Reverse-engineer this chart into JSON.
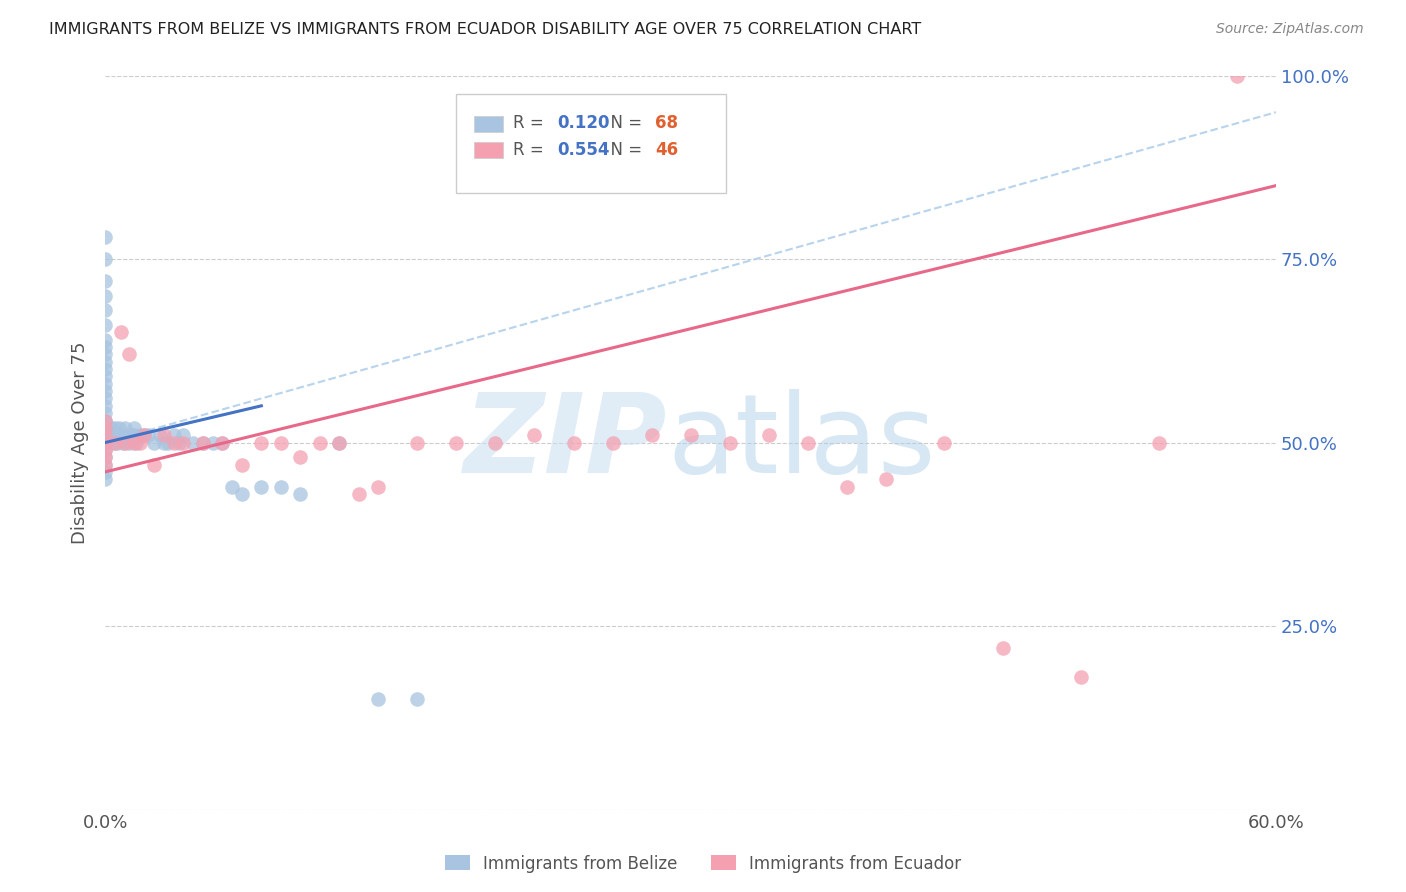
{
  "title": "IMMIGRANTS FROM BELIZE VS IMMIGRANTS FROM ECUADOR DISABILITY AGE OVER 75 CORRELATION CHART",
  "source": "Source: ZipAtlas.com",
  "ylabel": "Disability Age Over 75",
  "x_min": 0.0,
  "x_max": 0.6,
  "y_min": 0.0,
  "y_max": 1.0,
  "y_ticks": [
    0.0,
    0.25,
    0.5,
    0.75,
    1.0
  ],
  "y_tick_labels_right": [
    "",
    "25.0%",
    "50.0%",
    "75.0%",
    "100.0%"
  ],
  "belize_color": "#a8c4e0",
  "ecuador_color": "#f4a0b0",
  "belize_line_color": "#4472c4",
  "ecuador_line_color": "#e8688a",
  "belize_trendline_color": "#b8d4ec",
  "legend_belize_R": "0.120",
  "legend_belize_N": "68",
  "legend_ecuador_R": "0.554",
  "legend_ecuador_N": "46",
  "belize_x": [
    0.0,
    0.0,
    0.0,
    0.0,
    0.0,
    0.0,
    0.0,
    0.0,
    0.0,
    0.0,
    0.0,
    0.0,
    0.0,
    0.0,
    0.0,
    0.0,
    0.0,
    0.0,
    0.0,
    0.0,
    0.0,
    0.0,
    0.0,
    0.0,
    0.0,
    0.0,
    0.0,
    0.0,
    0.0,
    0.0,
    0.002,
    0.003,
    0.004,
    0.005,
    0.005,
    0.006,
    0.007,
    0.008,
    0.009,
    0.01,
    0.01,
    0.012,
    0.013,
    0.015,
    0.015,
    0.016,
    0.018,
    0.02,
    0.022,
    0.025,
    0.028,
    0.03,
    0.032,
    0.035,
    0.038,
    0.04,
    0.045,
    0.05,
    0.055,
    0.06,
    0.065,
    0.07,
    0.08,
    0.09,
    0.1,
    0.12,
    0.14,
    0.16
  ],
  "belize_y": [
    0.5,
    0.51,
    0.52,
    0.53,
    0.54,
    0.55,
    0.56,
    0.57,
    0.58,
    0.59,
    0.6,
    0.61,
    0.62,
    0.63,
    0.64,
    0.66,
    0.68,
    0.7,
    0.72,
    0.75,
    0.78,
    0.45,
    0.46,
    0.47,
    0.48,
    0.49,
    0.5,
    0.51,
    0.52,
    0.53,
    0.51,
    0.52,
    0.5,
    0.51,
    0.52,
    0.5,
    0.52,
    0.51,
    0.5,
    0.51,
    0.52,
    0.5,
    0.51,
    0.51,
    0.52,
    0.5,
    0.51,
    0.51,
    0.51,
    0.5,
    0.51,
    0.5,
    0.5,
    0.51,
    0.5,
    0.51,
    0.5,
    0.5,
    0.5,
    0.5,
    0.44,
    0.43,
    0.44,
    0.44,
    0.43,
    0.5,
    0.15,
    0.15
  ],
  "ecuador_x": [
    0.0,
    0.0,
    0.0,
    0.0,
    0.0,
    0.0,
    0.0,
    0.005,
    0.008,
    0.01,
    0.012,
    0.015,
    0.018,
    0.02,
    0.025,
    0.03,
    0.035,
    0.04,
    0.05,
    0.06,
    0.07,
    0.08,
    0.09,
    0.1,
    0.11,
    0.12,
    0.13,
    0.14,
    0.16,
    0.18,
    0.2,
    0.22,
    0.24,
    0.26,
    0.28,
    0.3,
    0.32,
    0.34,
    0.36,
    0.38,
    0.4,
    0.43,
    0.46,
    0.5,
    0.54,
    0.58
  ],
  "ecuador_y": [
    0.47,
    0.48,
    0.49,
    0.5,
    0.51,
    0.52,
    0.53,
    0.5,
    0.65,
    0.5,
    0.62,
    0.5,
    0.5,
    0.51,
    0.47,
    0.51,
    0.5,
    0.5,
    0.5,
    0.5,
    0.47,
    0.5,
    0.5,
    0.48,
    0.5,
    0.5,
    0.43,
    0.44,
    0.5,
    0.5,
    0.5,
    0.51,
    0.5,
    0.5,
    0.51,
    0.51,
    0.5,
    0.51,
    0.5,
    0.44,
    0.45,
    0.5,
    0.22,
    0.18,
    0.5,
    1.0
  ]
}
